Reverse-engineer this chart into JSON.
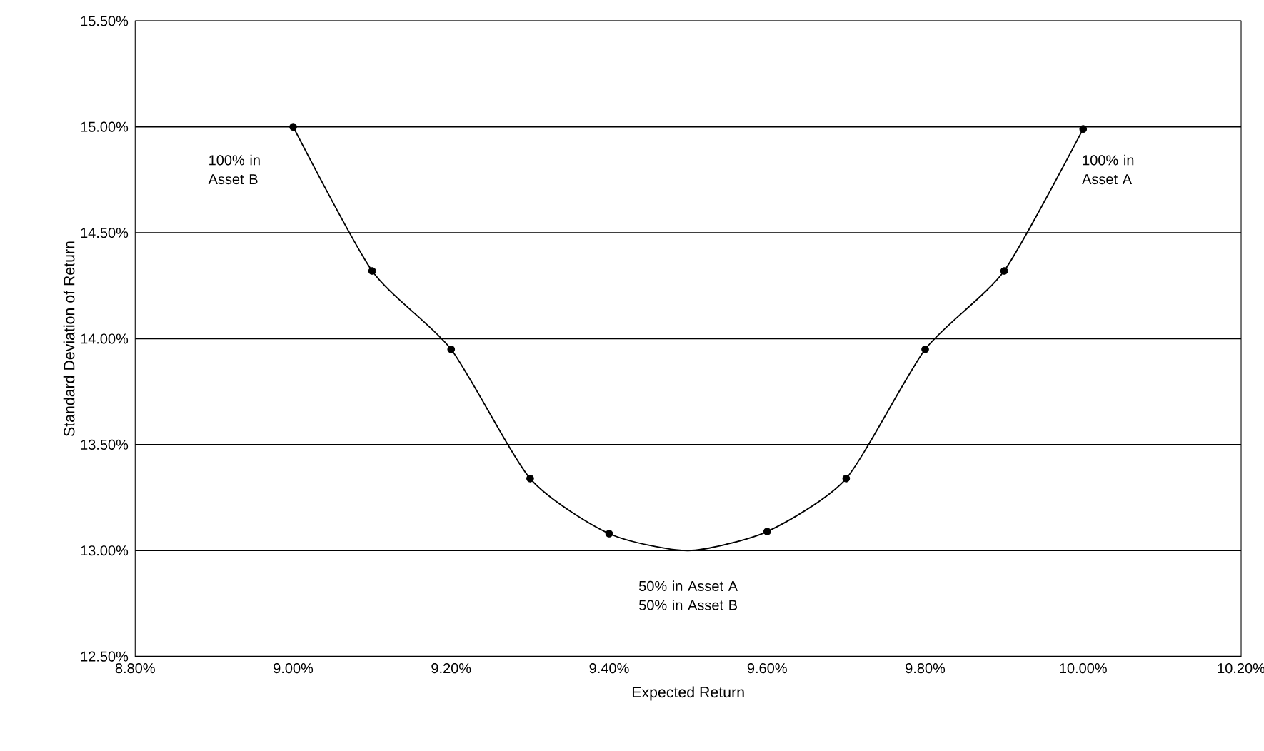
{
  "chart_data": {
    "type": "line",
    "xlabel": "Expected Return",
    "ylabel": "Standard Deviation of Return",
    "series": [
      {
        "type": "line",
        "color": "#000000",
        "marker": "none",
        "x": [
          9.0,
          9.1,
          9.2,
          9.3,
          9.4,
          9.5,
          9.6,
          9.7,
          9.8,
          9.9,
          10.0
        ],
        "values": [
          15.0,
          14.32,
          13.95,
          13.34,
          13.08,
          13.0,
          13.09,
          13.34,
          13.95,
          14.32,
          14.99
        ]
      },
      {
        "type": "scatter",
        "color": "#000000",
        "marker": "circle",
        "x": [
          9.0,
          9.1,
          9.2,
          9.3,
          9.4,
          9.6,
          9.7,
          9.8,
          9.9,
          10.0
        ],
        "values": [
          15.0,
          14.32,
          13.95,
          13.34,
          13.08,
          13.09,
          13.34,
          13.95,
          14.32,
          14.99
        ]
      }
    ],
    "xlim": [
      8.8,
      10.2
    ],
    "xticks": [
      {
        "value": 8.8,
        "label": "8.80%"
      },
      {
        "value": 9.0,
        "label": "9.00%"
      },
      {
        "value": 9.2,
        "label": "9.20%"
      },
      {
        "value": 9.4,
        "label": "9.40%"
      },
      {
        "value": 9.6,
        "label": "9.60%"
      },
      {
        "value": 9.8,
        "label": "9.80%"
      },
      {
        "value": 10.0,
        "label": "10.00%"
      },
      {
        "value": 10.2,
        "label": "10.20%"
      }
    ],
    "ylim": [
      12.5,
      15.5
    ],
    "yticks": [
      {
        "value": 12.5,
        "label": "12.50%"
      },
      {
        "value": 13.0,
        "label": "13.00%"
      },
      {
        "value": 13.5,
        "label": "13.50%"
      },
      {
        "value": 14.0,
        "label": "14.00%"
      },
      {
        "value": 14.5,
        "label": "14.50%"
      },
      {
        "value": 15.0,
        "label": "15.00%"
      },
      {
        "value": 15.5,
        "label": "15.50%"
      }
    ],
    "grid": "y",
    "annotations": [
      "100% in Asset B",
      "100% in Asset A",
      "50% in Asset A 50% in Asset B"
    ]
  }
}
